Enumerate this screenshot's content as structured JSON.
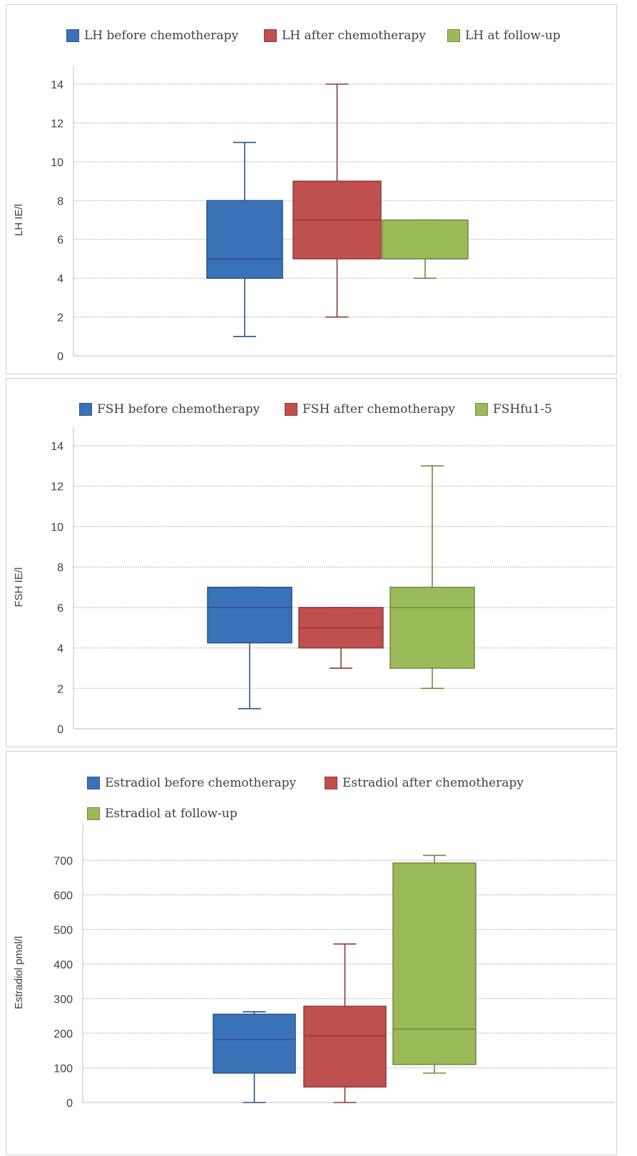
{
  "chart_data": [
    {
      "type": "boxplot",
      "ylabel": "LH IE/l",
      "ylim": [
        0,
        14
      ],
      "yticks": [
        0,
        2,
        4,
        6,
        8,
        10,
        12,
        14
      ],
      "grid": true,
      "legend_position": "top",
      "series": [
        {
          "name": "LH before chemotherapy",
          "color": "#3a72b8",
          "stats": {
            "min": 1,
            "q1": 4,
            "median": 5,
            "q3": 8,
            "max": 11
          }
        },
        {
          "name": "LH after chemotherapy",
          "color": "#c0504d",
          "stats": {
            "min": 2,
            "q1": 5,
            "median": 7,
            "q3": 9,
            "max": 14
          }
        },
        {
          "name": "LH at follow-up",
          "color": "#9bbb59",
          "stats": {
            "min": 4,
            "q1": 5,
            "median": 5,
            "q3": 7,
            "max": 7
          }
        }
      ]
    },
    {
      "type": "boxplot",
      "ylabel": "FSH IE/l",
      "ylim": [
        0,
        14
      ],
      "yticks": [
        0,
        2,
        4,
        6,
        8,
        10,
        12,
        14
      ],
      "grid": true,
      "legend_position": "top",
      "series": [
        {
          "name": "FSH before chemotherapy",
          "color": "#3a72b8",
          "stats": {
            "min": 1,
            "q1": 4.25,
            "median": 6,
            "q3": 7,
            "max": 7
          }
        },
        {
          "name": "FSH after chemotherapy",
          "color": "#c0504d",
          "stats": {
            "min": 3,
            "q1": 4,
            "median": 5,
            "q3": 6,
            "max": 6
          }
        },
        {
          "name": "FSHfu1-5",
          "color": "#9bbb59",
          "stats": {
            "min": 2,
            "q1": 3,
            "median": 6,
            "q3": 7,
            "max": 13
          }
        }
      ]
    },
    {
      "type": "boxplot",
      "ylabel": "Estradiol pmol/l",
      "ylim": [
        0,
        750
      ],
      "yticks": [
        0,
        100,
        200,
        300,
        400,
        500,
        600,
        700
      ],
      "grid": true,
      "legend_position": "top",
      "series": [
        {
          "name": "Estradiol before chemotherapy",
          "color": "#3a72b8",
          "stats": {
            "min": 0,
            "q1": 85,
            "median": 182,
            "q3": 255,
            "max": 262
          }
        },
        {
          "name": "Estradiol after chemotherapy",
          "color": "#c0504d",
          "stats": {
            "min": 0,
            "q1": 45,
            "median": 193,
            "q3": 278,
            "max": 458
          }
        },
        {
          "name": "Estradiol at follow-up",
          "color": "#9bbb59",
          "stats": {
            "min": 85,
            "q1": 110,
            "median": 212,
            "q3": 692,
            "max": 714
          }
        }
      ]
    }
  ]
}
